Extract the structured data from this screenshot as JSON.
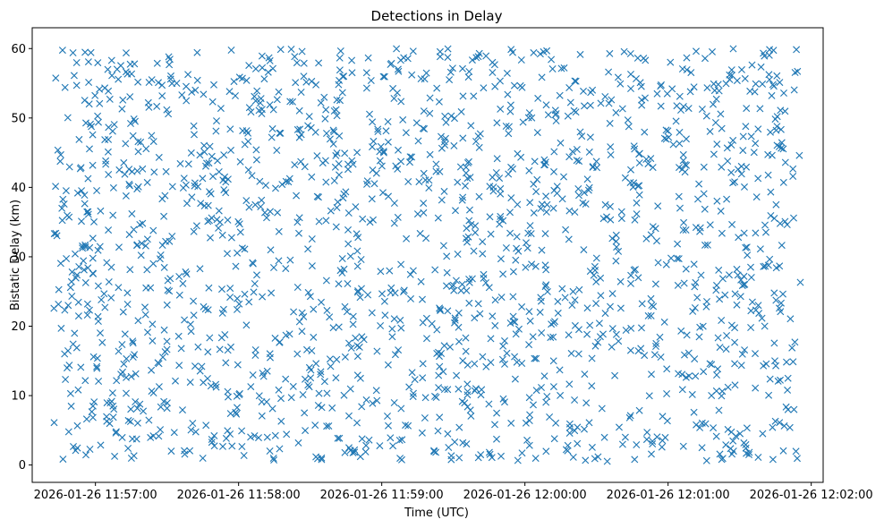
{
  "chart_data": {
    "type": "scatter",
    "title": "Detections in Delay",
    "xlabel": "Time (UTC)",
    "ylabel": "Bistatic Delay (km)",
    "x_tick_labels": [
      "2026-01-26 11:57:00",
      "2026-01-26 11:58:00",
      "2026-01-26 11:59:00",
      "2026-01-26 12:00:00",
      "2026-01-26 12:01:00",
      "2026-01-26 12:02:00"
    ],
    "x_tick_seconds": [
      60,
      120,
      180,
      240,
      300,
      360
    ],
    "x_origin_label": "2026-01-26 11:56:00",
    "xlim_seconds": [
      33.5,
      365
    ],
    "ylim": [
      -2.5,
      63
    ],
    "y_ticks": [
      0,
      10,
      20,
      30,
      40,
      50,
      60
    ],
    "marker": "x",
    "color": "#1f77b4",
    "series": [
      {
        "name": "detections",
        "point_count": 1800,
        "time_range_seconds": [
          42.5,
          355.5
        ],
        "delay_range_km": [
          0.5,
          60
        ],
        "distribution": "approximately uniform random"
      }
    ]
  }
}
